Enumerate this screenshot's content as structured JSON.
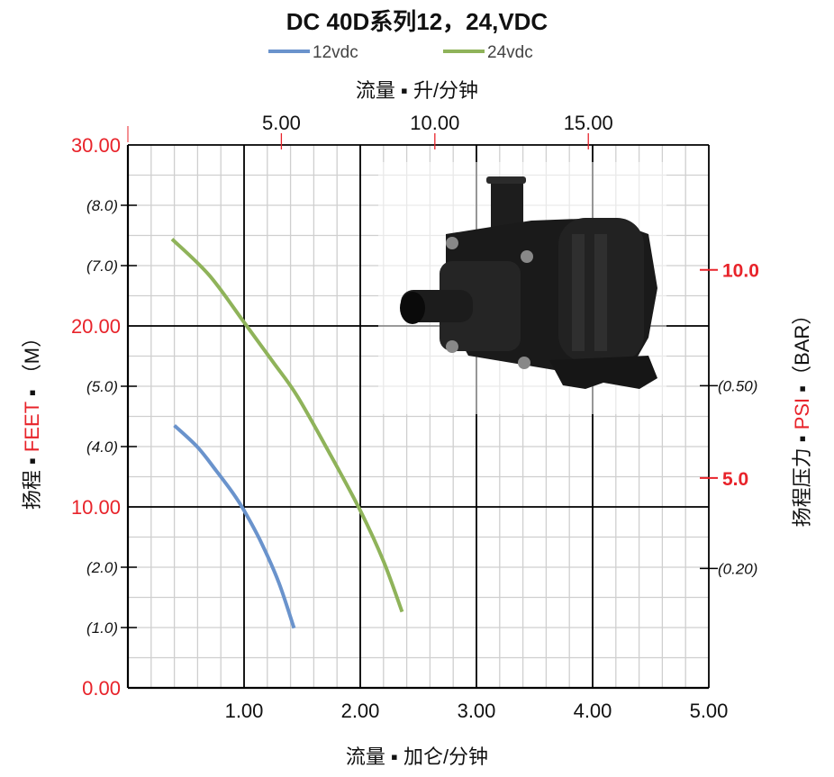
{
  "chart_data": {
    "type": "line",
    "title": "DC 40D系列12，24,VDC",
    "legend": {
      "placement": "top-center"
    },
    "series": [
      {
        "name": "12vdc",
        "color": "#6a93cc",
        "x": [
          0.4,
          0.6,
          0.76,
          0.9,
          1.0,
          1.15,
          1.3,
          1.43
        ],
        "y": [
          14.5,
          13.3,
          12.0,
          10.8,
          9.8,
          8.0,
          5.8,
          3.3
        ]
      },
      {
        "name": "24vdc",
        "color": "#8fb35a",
        "x": [
          0.38,
          0.7,
          1.0,
          1.25,
          1.46,
          1.75,
          2.0,
          2.2,
          2.36
        ],
        "y": [
          24.8,
          22.8,
          20.2,
          18.0,
          16.1,
          12.8,
          9.8,
          7.0,
          4.2
        ]
      }
    ],
    "x_bottom": {
      "label": "流量 ▪ 加仑/分钟",
      "range": [
        0,
        5
      ],
      "ticks": [
        "1.00",
        "2.00",
        "3.00",
        "4.00",
        "5.00"
      ],
      "tick_values": [
        1,
        2,
        3,
        4,
        5
      ]
    },
    "x_top": {
      "label": "流量 ▪ 升/分钟",
      "unit_ratio_to_gallon": 3.785,
      "ticks": [
        "5.00",
        "10.00",
        "15.00"
      ],
      "tick_values": [
        5,
        10,
        15
      ]
    },
    "y_left": {
      "label_parts": [
        "扬程 ▪ ",
        "FEET",
        " ▪ （M）"
      ],
      "range": [
        0,
        30
      ],
      "ticks": [
        "0.00",
        "10.00",
        "20.00",
        "30.00"
      ],
      "tick_values": [
        0,
        10,
        20,
        30
      ],
      "meter_ticks": [
        "(1.0)",
        "(2.0)",
        "(4.0)",
        "(5.0)",
        "(7.0)",
        "(8.0)"
      ],
      "meter_tick_feet": [
        3.333,
        6.667,
        13.333,
        16.667,
        23.333,
        26.667
      ]
    },
    "y_right": {
      "label_parts": [
        "扬程压力 ▪ ",
        "PSI",
        " ▪（BAR）"
      ],
      "psi_ticks": [
        "10.0",
        "5.0"
      ],
      "psi_tick_feet": [
        23.1,
        11.6
      ],
      "bar_ticks": [
        "(0.50)",
        "(0.20)"
      ],
      "bar_tick_feet": [
        16.7,
        6.6
      ]
    },
    "grid": true,
    "grid_minor_x_step": 0.2,
    "grid_minor_y_step": 1.6667,
    "colors": {
      "accent_red": "#e8232a",
      "grid_minor": "#cfcfcf",
      "grid_major": "#000000"
    }
  },
  "image": {
    "icon": "pump-photo"
  }
}
